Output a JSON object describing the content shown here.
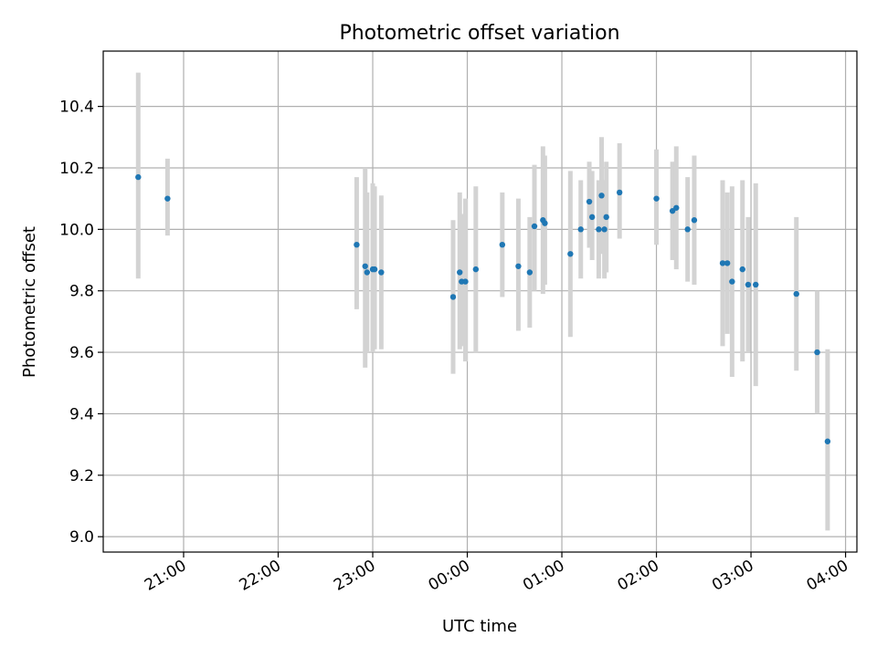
{
  "chart_data": {
    "type": "scatter",
    "title": "Photometric offset variation",
    "xlabel": "UTC time",
    "ylabel": "Photometric offset",
    "x_unit": "hours since 00:00 UTC",
    "xlim": [
      -3.85,
      4.12
    ],
    "ylim": [
      8.95,
      10.58
    ],
    "x_ticks": [
      {
        "value": -3,
        "label": "21:00"
      },
      {
        "value": -2,
        "label": "22:00"
      },
      {
        "value": -1,
        "label": "23:00"
      },
      {
        "value": 0,
        "label": "00:00"
      },
      {
        "value": 1,
        "label": "01:00"
      },
      {
        "value": 2,
        "label": "02:00"
      },
      {
        "value": 3,
        "label": "03:00"
      },
      {
        "value": 4,
        "label": "04:00"
      }
    ],
    "y_ticks": [
      {
        "value": 9.0,
        "label": "9.0"
      },
      {
        "value": 9.2,
        "label": "9.2"
      },
      {
        "value": 9.4,
        "label": "9.4"
      },
      {
        "value": 9.6,
        "label": "9.6"
      },
      {
        "value": 9.8,
        "label": "9.8"
      },
      {
        "value": 10.0,
        "label": "10.0"
      },
      {
        "value": 10.2,
        "label": "10.2"
      },
      {
        "value": 10.4,
        "label": "10.4"
      }
    ],
    "grid": true,
    "series": [
      {
        "name": "offset",
        "marker_color": "#1f77b4",
        "errorbar_color": "#d3d3d3",
        "points": [
          {
            "x": -3.48,
            "y": 10.17,
            "lo": 9.84,
            "hi": 10.51
          },
          {
            "x": -3.17,
            "y": 10.1,
            "lo": 9.98,
            "hi": 10.23
          },
          {
            "x": -1.17,
            "y": 9.95,
            "lo": 9.74,
            "hi": 10.17
          },
          {
            "x": -1.08,
            "y": 9.88,
            "lo": 9.55,
            "hi": 10.2
          },
          {
            "x": -1.06,
            "y": 9.86,
            "lo": 9.6,
            "hi": 10.12
          },
          {
            "x": -1.0,
            "y": 9.87,
            "lo": 9.6,
            "hi": 10.15
          },
          {
            "x": -0.98,
            "y": 9.87,
            "lo": 9.61,
            "hi": 10.14
          },
          {
            "x": -0.91,
            "y": 9.86,
            "lo": 9.61,
            "hi": 10.11
          },
          {
            "x": -0.15,
            "y": 9.78,
            "lo": 9.53,
            "hi": 10.03
          },
          {
            "x": -0.08,
            "y": 9.86,
            "lo": 9.61,
            "hi": 10.12
          },
          {
            "x": -0.06,
            "y": 9.83,
            "lo": 9.62,
            "hi": 10.05
          },
          {
            "x": -0.02,
            "y": 9.83,
            "lo": 9.57,
            "hi": 10.1
          },
          {
            "x": 0.09,
            "y": 9.87,
            "lo": 9.6,
            "hi": 10.14
          },
          {
            "x": 0.37,
            "y": 9.95,
            "lo": 9.78,
            "hi": 10.12
          },
          {
            "x": 0.54,
            "y": 9.88,
            "lo": 9.67,
            "hi": 10.1
          },
          {
            "x": 0.66,
            "y": 9.86,
            "lo": 9.68,
            "hi": 10.04
          },
          {
            "x": 0.71,
            "y": 10.01,
            "lo": 9.8,
            "hi": 10.21
          },
          {
            "x": 0.8,
            "y": 10.03,
            "lo": 9.79,
            "hi": 10.27
          },
          {
            "x": 0.82,
            "y": 10.02,
            "lo": 9.82,
            "hi": 10.24
          },
          {
            "x": 1.09,
            "y": 9.92,
            "lo": 9.65,
            "hi": 10.19
          },
          {
            "x": 1.2,
            "y": 10.0,
            "lo": 9.84,
            "hi": 10.16
          },
          {
            "x": 1.29,
            "y": 10.09,
            "lo": 9.94,
            "hi": 10.22
          },
          {
            "x": 1.32,
            "y": 10.04,
            "lo": 9.9,
            "hi": 10.19
          },
          {
            "x": 1.39,
            "y": 10.0,
            "lo": 9.84,
            "hi": 10.16
          },
          {
            "x": 1.42,
            "y": 10.11,
            "lo": 9.92,
            "hi": 10.3
          },
          {
            "x": 1.45,
            "y": 10.0,
            "lo": 9.84,
            "hi": 10.16
          },
          {
            "x": 1.47,
            "y": 10.04,
            "lo": 9.86,
            "hi": 10.22
          },
          {
            "x": 1.61,
            "y": 10.12,
            "lo": 9.97,
            "hi": 10.28
          },
          {
            "x": 2.0,
            "y": 10.1,
            "lo": 9.95,
            "hi": 10.26
          },
          {
            "x": 2.17,
            "y": 10.06,
            "lo": 9.9,
            "hi": 10.22
          },
          {
            "x": 2.21,
            "y": 10.07,
            "lo": 9.87,
            "hi": 10.27
          },
          {
            "x": 2.33,
            "y": 10.0,
            "lo": 9.83,
            "hi": 10.17
          },
          {
            "x": 2.4,
            "y": 10.03,
            "lo": 9.82,
            "hi": 10.24
          },
          {
            "x": 2.7,
            "y": 9.89,
            "lo": 9.62,
            "hi": 10.16
          },
          {
            "x": 2.75,
            "y": 9.89,
            "lo": 9.66,
            "hi": 10.12
          },
          {
            "x": 2.8,
            "y": 9.83,
            "lo": 9.52,
            "hi": 10.14
          },
          {
            "x": 2.91,
            "y": 9.87,
            "lo": 9.57,
            "hi": 10.16
          },
          {
            "x": 2.97,
            "y": 9.82,
            "lo": 9.6,
            "hi": 10.04
          },
          {
            "x": 3.05,
            "y": 9.82,
            "lo": 9.49,
            "hi": 10.15
          },
          {
            "x": 3.48,
            "y": 9.79,
            "lo": 9.54,
            "hi": 10.04
          },
          {
            "x": 3.7,
            "y": 9.6,
            "lo": 9.4,
            "hi": 9.8
          },
          {
            "x": 3.81,
            "y": 9.31,
            "lo": 9.02,
            "hi": 9.61
          }
        ]
      }
    ]
  }
}
